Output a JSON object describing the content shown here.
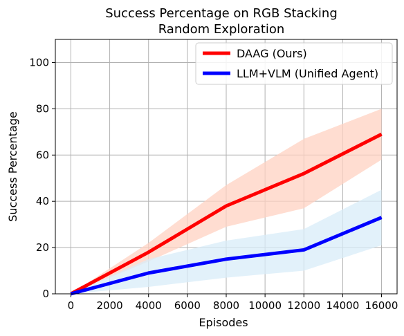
{
  "chart_data": {
    "type": "line",
    "title": [
      "Success Percentage on RGB Stacking",
      "Random Exploration"
    ],
    "xlabel": "Episodes",
    "ylabel": "Success Percentage",
    "xlim": [
      -800,
      16800
    ],
    "ylim": [
      0,
      110
    ],
    "xticks": [
      0,
      2000,
      4000,
      6000,
      8000,
      10000,
      12000,
      14000,
      16000
    ],
    "yticks": [
      0,
      20,
      40,
      60,
      80,
      100
    ],
    "grid": true,
    "legend_position": "top-right",
    "series": [
      {
        "name": "DAAG (Ours)",
        "color": "#ff0000",
        "band_color": "#ffd1c2",
        "x": [
          0,
          4000,
          8000,
          12000,
          16000
        ],
        "values": [
          0,
          18,
          38,
          52,
          69
        ],
        "lower": [
          0,
          14,
          29,
          37,
          58
        ],
        "upper": [
          0,
          22,
          47,
          67,
          80
        ]
      },
      {
        "name": "LLM+VLM (Unified Agent)",
        "color": "#0000ff",
        "band_color": "#d8ecf8",
        "x": [
          0,
          4000,
          8000,
          12000,
          16000
        ],
        "values": [
          0,
          9,
          15,
          19,
          33
        ],
        "lower": [
          0,
          3,
          7,
          10,
          21
        ],
        "upper": [
          0,
          15,
          23,
          28,
          45
        ]
      }
    ]
  }
}
